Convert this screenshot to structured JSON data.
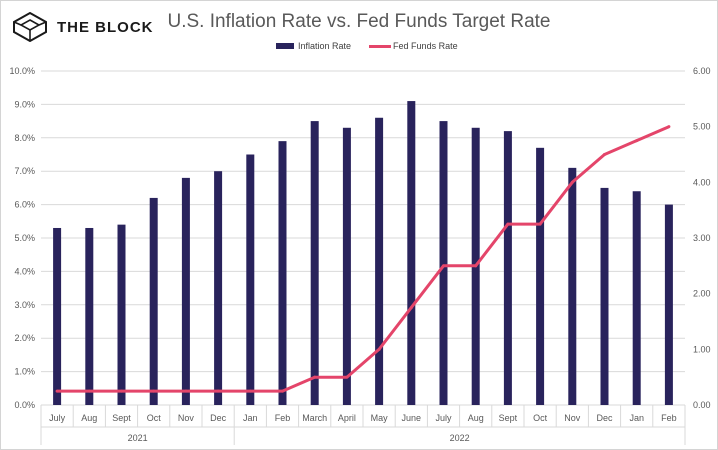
{
  "brand": {
    "name": "THE BLOCK",
    "mark_icon": "cube-logo-icon"
  },
  "watermark": "",
  "colors": {
    "bar": "#29235c",
    "line": "#e4456a",
    "grid": "#d9d9d9",
    "text": "#595959"
  },
  "chart_data": {
    "type": "bar",
    "title": "U.S. Inflation Rate vs. Fed Funds Target Rate",
    "categories": [
      "July",
      "Aug",
      "Sept",
      "Oct",
      "Nov",
      "Dec",
      "Jan",
      "Feb",
      "March",
      "April",
      "May",
      "June",
      "July",
      "Aug",
      "Sept",
      "Oct",
      "Nov",
      "Dec",
      "Jan",
      "Feb"
    ],
    "groups": [
      {
        "label": "2021",
        "count": 6
      },
      {
        "label": "2022",
        "count": 14
      }
    ],
    "series": [
      {
        "name": "Inflation Rate",
        "type": "bar",
        "axis": "left",
        "values": [
          5.3,
          5.3,
          5.4,
          6.2,
          6.8,
          7.0,
          7.5,
          7.9,
          8.5,
          8.3,
          8.6,
          9.1,
          8.5,
          8.3,
          8.2,
          7.7,
          7.1,
          6.5,
          6.4,
          6.0
        ]
      },
      {
        "name": "Fed Funds Rate",
        "type": "line",
        "axis": "right",
        "values": [
          0.25,
          0.25,
          0.25,
          0.25,
          0.25,
          0.25,
          0.25,
          0.25,
          0.5,
          0.5,
          1.0,
          1.75,
          2.5,
          2.5,
          3.25,
          3.25,
          4.0,
          4.5,
          4.75,
          5.0
        ]
      }
    ],
    "left_axis": {
      "ylim": [
        0,
        10
      ],
      "step": 1,
      "ticks": [
        "0.0%",
        "1.0%",
        "2.0%",
        "3.0%",
        "4.0%",
        "5.0%",
        "6.0%",
        "7.0%",
        "8.0%",
        "9.0%",
        "10.0%"
      ]
    },
    "right_axis": {
      "ylim": [
        0,
        6
      ],
      "step": 1,
      "ticks": [
        "0.00",
        "1.00",
        "2.00",
        "3.00",
        "4.00",
        "5.00",
        "6.00"
      ]
    },
    "grid": true,
    "legend": "top"
  }
}
